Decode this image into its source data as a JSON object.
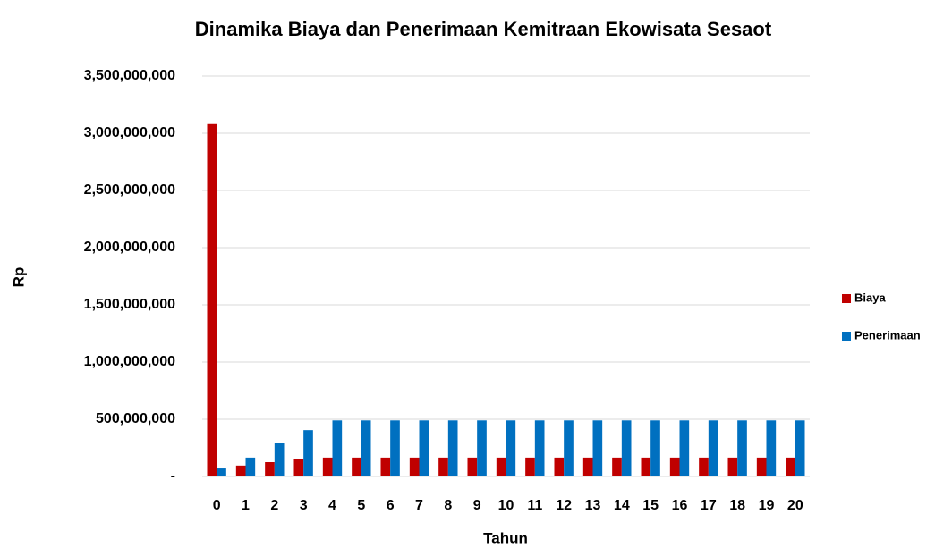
{
  "chart_data": {
    "type": "bar",
    "title": "Dinamika Biaya dan Penerimaan Kemitraan Ekowisata Sesaot",
    "x_label": "Tahun",
    "y_label": "Rp",
    "categories": [
      "0",
      "1",
      "2",
      "3",
      "4",
      "5",
      "6",
      "7",
      "8",
      "9",
      "10",
      "11",
      "12",
      "13",
      "14",
      "15",
      "16",
      "17",
      "18",
      "19",
      "20"
    ],
    "series": [
      {
        "name": "Biaya",
        "color": "#c00000",
        "values": [
          3080000000,
          95000000,
          125000000,
          150000000,
          165000000,
          165000000,
          165000000,
          165000000,
          165000000,
          165000000,
          165000000,
          165000000,
          165000000,
          165000000,
          165000000,
          165000000,
          165000000,
          165000000,
          165000000,
          165000000,
          165000000
        ]
      },
      {
        "name": "Penerimaan",
        "color": "#0070c0",
        "values": [
          70000000,
          165000000,
          290000000,
          405000000,
          490000000,
          490000000,
          490000000,
          490000000,
          490000000,
          490000000,
          490000000,
          490000000,
          490000000,
          490000000,
          490000000,
          490000000,
          490000000,
          490000000,
          490000000,
          490000000,
          490000000
        ]
      }
    ],
    "ylim": [
      0,
      3500000000
    ],
    "yticks": [
      {
        "value": 0,
        "label": "-"
      },
      {
        "value": 500000000,
        "label": "500,000,000"
      },
      {
        "value": 1000000000,
        "label": "1,000,000,000"
      },
      {
        "value": 1500000000,
        "label": "1,500,000,000"
      },
      {
        "value": 2000000000,
        "label": "2,000,000,000"
      },
      {
        "value": 2500000000,
        "label": "2,500,000,000"
      },
      {
        "value": 3000000000,
        "label": "3,000,000,000"
      },
      {
        "value": 3500000000,
        "label": "3,500,000,000"
      }
    ],
    "grid": true,
    "legend": "right"
  }
}
